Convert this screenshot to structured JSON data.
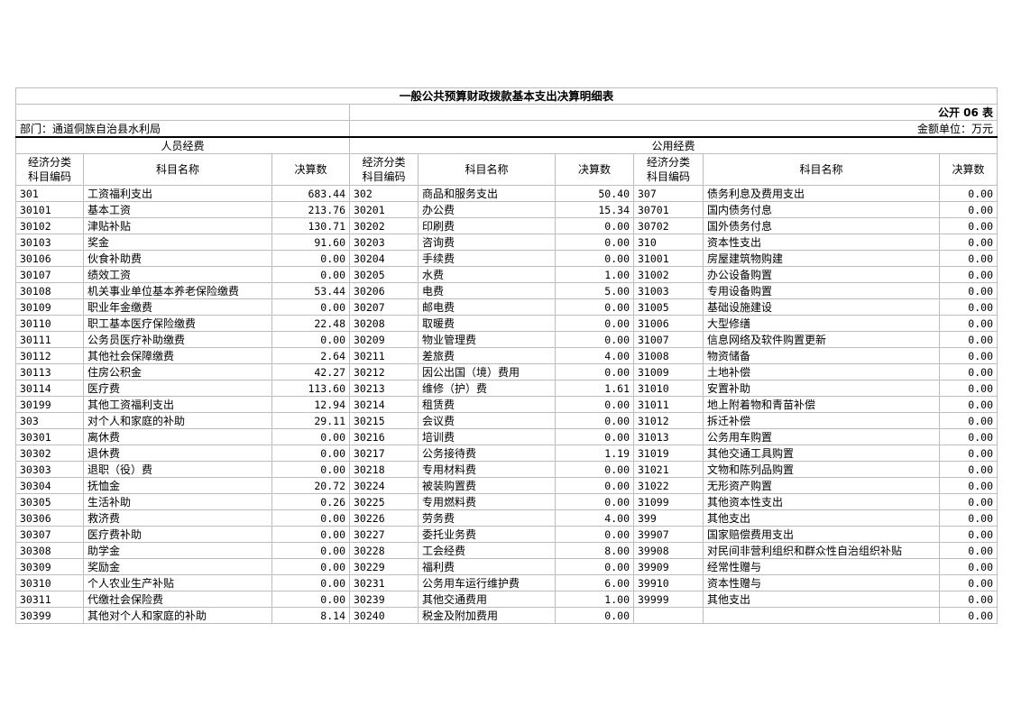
{
  "title": "一般公共预算财政拨款基本支出决算明细表",
  "table_no": "公开 06 表",
  "department": "部门：通道侗族自治县水利局",
  "unit": "金额单位：万元",
  "groups": {
    "personnel": "人员经费",
    "public": "公用经费"
  },
  "headers": {
    "code": "经济分类科目编码",
    "code_line1": "经济分类",
    "code_line2": "科目编码",
    "name": "科目名称",
    "amount": "决算数"
  },
  "personnel_rows": [
    [
      "301",
      "工资福利支出",
      "683.44"
    ],
    [
      "30101",
      "基本工资",
      "213.76"
    ],
    [
      "30102",
      "津贴补贴",
      "130.71"
    ],
    [
      "30103",
      "奖金",
      "91.60"
    ],
    [
      "30106",
      "伙食补助费",
      "0.00"
    ],
    [
      "30107",
      "绩效工资",
      "0.00"
    ],
    [
      "30108",
      "机关事业单位基本养老保险缴费",
      "53.44"
    ],
    [
      "30109",
      "职业年金缴费",
      "0.00"
    ],
    [
      "30110",
      "职工基本医疗保险缴费",
      "22.48"
    ],
    [
      "30111",
      "公务员医疗补助缴费",
      "0.00"
    ],
    [
      "30112",
      "其他社会保障缴费",
      "2.64"
    ],
    [
      "30113",
      "住房公积金",
      "42.27"
    ],
    [
      "30114",
      "医疗费",
      "113.60"
    ],
    [
      "30199",
      "其他工资福利支出",
      "12.94"
    ],
    [
      "303",
      "对个人和家庭的补助",
      "29.11"
    ],
    [
      "30301",
      "离休费",
      "0.00"
    ],
    [
      "30302",
      "退休费",
      "0.00"
    ],
    [
      "30303",
      "退职（役）费",
      "0.00"
    ],
    [
      "30304",
      "抚恤金",
      "20.72"
    ],
    [
      "30305",
      "生活补助",
      "0.26"
    ],
    [
      "30306",
      "救济费",
      "0.00"
    ],
    [
      "30307",
      "医疗费补助",
      "0.00"
    ],
    [
      "30308",
      "助学金",
      "0.00"
    ],
    [
      "30309",
      "奖励金",
      "0.00"
    ],
    [
      "30310",
      "个人农业生产补贴",
      "0.00"
    ],
    [
      "30311",
      "代缴社会保险费",
      "0.00"
    ],
    [
      "30399",
      "其他对个人和家庭的补助",
      "8.14"
    ]
  ],
  "public_rows_a": [
    [
      "302",
      "商品和服务支出",
      "50.40"
    ],
    [
      "30201",
      "办公费",
      "15.34"
    ],
    [
      "30202",
      "印刷费",
      "0.00"
    ],
    [
      "30203",
      "咨询费",
      "0.00"
    ],
    [
      "30204",
      "手续费",
      "0.00"
    ],
    [
      "30205",
      "水费",
      "1.00"
    ],
    [
      "30206",
      "电费",
      "5.00"
    ],
    [
      "30207",
      "邮电费",
      "0.00"
    ],
    [
      "30208",
      "取暖费",
      "0.00"
    ],
    [
      "30209",
      "物业管理费",
      "0.00"
    ],
    [
      "30211",
      "差旅费",
      "4.00"
    ],
    [
      "30212",
      "因公出国（境）费用",
      "0.00"
    ],
    [
      "30213",
      "维修（护）费",
      "1.61"
    ],
    [
      "30214",
      "租赁费",
      "0.00"
    ],
    [
      "30215",
      "会议费",
      "0.00"
    ],
    [
      "30216",
      "培训费",
      "0.00"
    ],
    [
      "30217",
      "公务接待费",
      "1.19"
    ],
    [
      "30218",
      "专用材料费",
      "0.00"
    ],
    [
      "30224",
      "被装购置费",
      "0.00"
    ],
    [
      "30225",
      "专用燃料费",
      "0.00"
    ],
    [
      "30226",
      "劳务费",
      "4.00"
    ],
    [
      "30227",
      "委托业务费",
      "0.00"
    ],
    [
      "30228",
      "工会经费",
      "8.00"
    ],
    [
      "30229",
      "福利费",
      "0.00"
    ],
    [
      "30231",
      "公务用车运行维护费",
      "6.00"
    ],
    [
      "30239",
      "其他交通费用",
      "1.00"
    ],
    [
      "30240",
      "税金及附加费用",
      "0.00"
    ]
  ],
  "public_rows_b": [
    [
      "307",
      "债务利息及费用支出",
      "0.00"
    ],
    [
      "30701",
      "国内债务付息",
      "0.00"
    ],
    [
      "30702",
      "国外债务付息",
      "0.00"
    ],
    [
      "310",
      "资本性支出",
      "0.00"
    ],
    [
      "31001",
      "房屋建筑物购建",
      "0.00"
    ],
    [
      "31002",
      "办公设备购置",
      "0.00"
    ],
    [
      "31003",
      "专用设备购置",
      "0.00"
    ],
    [
      "31005",
      "基础设施建设",
      "0.00"
    ],
    [
      "31006",
      "大型修缮",
      "0.00"
    ],
    [
      "31007",
      "信息网络及软件购置更新",
      "0.00"
    ],
    [
      "31008",
      "物资储备",
      "0.00"
    ],
    [
      "31009",
      "土地补偿",
      "0.00"
    ],
    [
      "31010",
      "安置补助",
      "0.00"
    ],
    [
      "31011",
      "地上附着物和青苗补偿",
      "0.00"
    ],
    [
      "31012",
      "拆迁补偿",
      "0.00"
    ],
    [
      "31013",
      "公务用车购置",
      "0.00"
    ],
    [
      "31019",
      "其他交通工具购置",
      "0.00"
    ],
    [
      "31021",
      "文物和陈列品购置",
      "0.00"
    ],
    [
      "31022",
      "无形资产购置",
      "0.00"
    ],
    [
      "31099",
      "其他资本性支出",
      "0.00"
    ],
    [
      "399",
      "其他支出",
      "0.00"
    ],
    [
      "39907",
      "国家赔偿费用支出",
      "0.00"
    ],
    [
      "39908",
      "对民间非营利组织和群众性自治组织补贴",
      "0.00"
    ],
    [
      "39909",
      "经常性赠与",
      "0.00"
    ],
    [
      "39910",
      "资本性赠与",
      "0.00"
    ],
    [
      "39999",
      "其他支出",
      "0.00"
    ],
    [
      "",
      "",
      "0.00"
    ]
  ]
}
